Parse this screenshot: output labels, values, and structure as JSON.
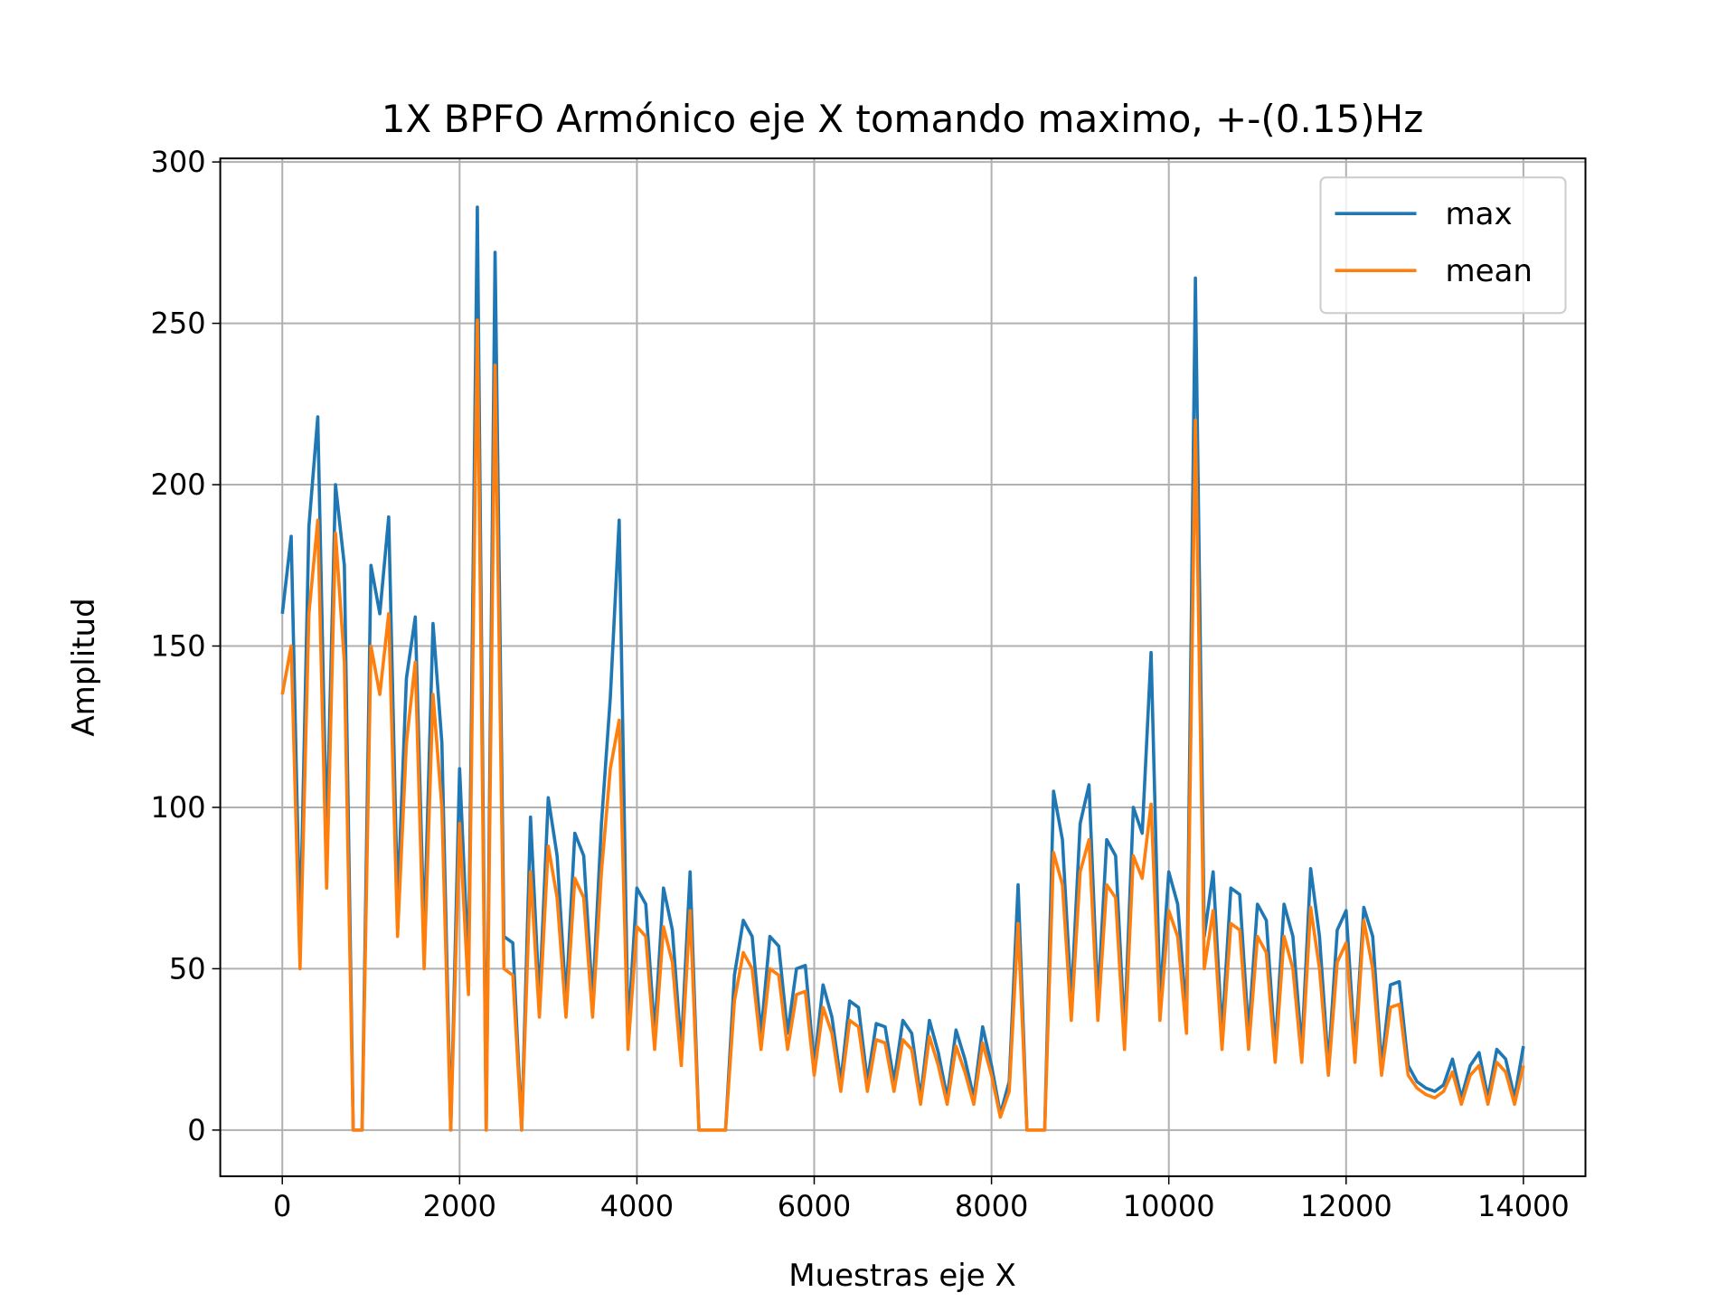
{
  "chart_data": {
    "type": "line",
    "title": "1X BPFO Armónico eje X tomando maximo, +-(0.15)Hz",
    "xlabel": "Muestras eje X",
    "ylabel": "Amplitud",
    "x": [
      0,
      100,
      200,
      300,
      400,
      500,
      600,
      700,
      800,
      900,
      1000,
      1100,
      1200,
      1300,
      1400,
      1500,
      1600,
      1700,
      1800,
      1900,
      2000,
      2100,
      2200,
      2300,
      2400,
      2500,
      2600,
      2700,
      2800,
      2900,
      3000,
      3100,
      3200,
      3300,
      3400,
      3500,
      3600,
      3700,
      3800,
      3900,
      4000,
      4100,
      4200,
      4300,
      4400,
      4500,
      4600,
      4700,
      4800,
      4900,
      5000,
      5100,
      5200,
      5300,
      5400,
      5500,
      5600,
      5700,
      5800,
      5900,
      6000,
      6100,
      6200,
      6300,
      6400,
      6500,
      6600,
      6700,
      6800,
      6900,
      7000,
      7100,
      7200,
      7300,
      7400,
      7500,
      7600,
      7700,
      7800,
      7900,
      8000,
      8100,
      8200,
      8300,
      8400,
      8500,
      8600,
      8700,
      8800,
      8900,
      9000,
      9100,
      9200,
      9300,
      9400,
      9500,
      9600,
      9700,
      9800,
      9900,
      10000,
      10100,
      10200,
      10300,
      10400,
      10500,
      10600,
      10700,
      10800,
      10900,
      11000,
      11100,
      11200,
      11300,
      11400,
      11500,
      11600,
      11700,
      11800,
      11900,
      12000,
      12100,
      12200,
      12300,
      12400,
      12500,
      12600,
      12700,
      12800,
      12900,
      13000,
      13100,
      13200,
      13300,
      13400,
      13500,
      13600,
      13700,
      13800,
      13900,
      14000
    ],
    "series": [
      {
        "name": "max",
        "color": "#1f77b4",
        "values": [
          160,
          184,
          60,
          187,
          221,
          90,
          200,
          175,
          0,
          0,
          175,
          160,
          190,
          70,
          140,
          159,
          60,
          157,
          120,
          0,
          112,
          50,
          286,
          0,
          272,
          60,
          58,
          0,
          97,
          40,
          103,
          85,
          40,
          92,
          85,
          40,
          95,
          134,
          189,
          30,
          75,
          70,
          30,
          75,
          62,
          25,
          80,
          0,
          0,
          0,
          0,
          48,
          65,
          60,
          30,
          60,
          57,
          30,
          50,
          51,
          20,
          45,
          35,
          15,
          40,
          38,
          15,
          33,
          32,
          15,
          34,
          30,
          10,
          34,
          24,
          10,
          31,
          22,
          10,
          32,
          20,
          5,
          15,
          76,
          0,
          0,
          0,
          105,
          90,
          40,
          95,
          107,
          40,
          90,
          85,
          30,
          100,
          92,
          148,
          40,
          80,
          70,
          35,
          264,
          60,
          80,
          30,
          75,
          73,
          30,
          70,
          65,
          25,
          70,
          60,
          25,
          81,
          60,
          20,
          62,
          68,
          25,
          69,
          60,
          20,
          45,
          46,
          20,
          15,
          13,
          12,
          14,
          22,
          10,
          20,
          24,
          10,
          25,
          22,
          10,
          26
        ]
      },
      {
        "name": "mean",
        "color": "#ff7f0e",
        "values": [
          135,
          150,
          50,
          160,
          189,
          75,
          185,
          145,
          0,
          0,
          150,
          135,
          160,
          60,
          120,
          145,
          50,
          135,
          100,
          0,
          95,
          42,
          251,
          0,
          237,
          50,
          48,
          0,
          80,
          35,
          88,
          72,
          35,
          78,
          72,
          35,
          80,
          112,
          127,
          25,
          63,
          60,
          25,
          63,
          52,
          20,
          68,
          0,
          0,
          0,
          0,
          40,
          55,
          50,
          25,
          50,
          48,
          25,
          42,
          43,
          17,
          38,
          30,
          12,
          34,
          32,
          12,
          28,
          27,
          12,
          28,
          25,
          8,
          29,
          20,
          8,
          26,
          18,
          8,
          27,
          17,
          4,
          12,
          64,
          0,
          0,
          0,
          86,
          76,
          34,
          80,
          90,
          34,
          76,
          72,
          25,
          85,
          78,
          101,
          34,
          68,
          60,
          30,
          220,
          50,
          68,
          25,
          64,
          62,
          25,
          60,
          55,
          21,
          60,
          50,
          21,
          69,
          50,
          17,
          52,
          58,
          21,
          65,
          50,
          17,
          38,
          39,
          17,
          13,
          11,
          10,
          12,
          18,
          8,
          17,
          20,
          8,
          21,
          18,
          8,
          20
        ]
      }
    ],
    "xlim": [
      -700,
      14700
    ],
    "xticks": [
      0,
      2000,
      4000,
      6000,
      8000,
      10000,
      12000,
      14000
    ],
    "ylim": [
      -14.3,
      301.1
    ],
    "yticks": [
      0,
      50,
      100,
      150,
      200,
      250,
      300
    ],
    "grid": true,
    "legend": "upper right"
  }
}
